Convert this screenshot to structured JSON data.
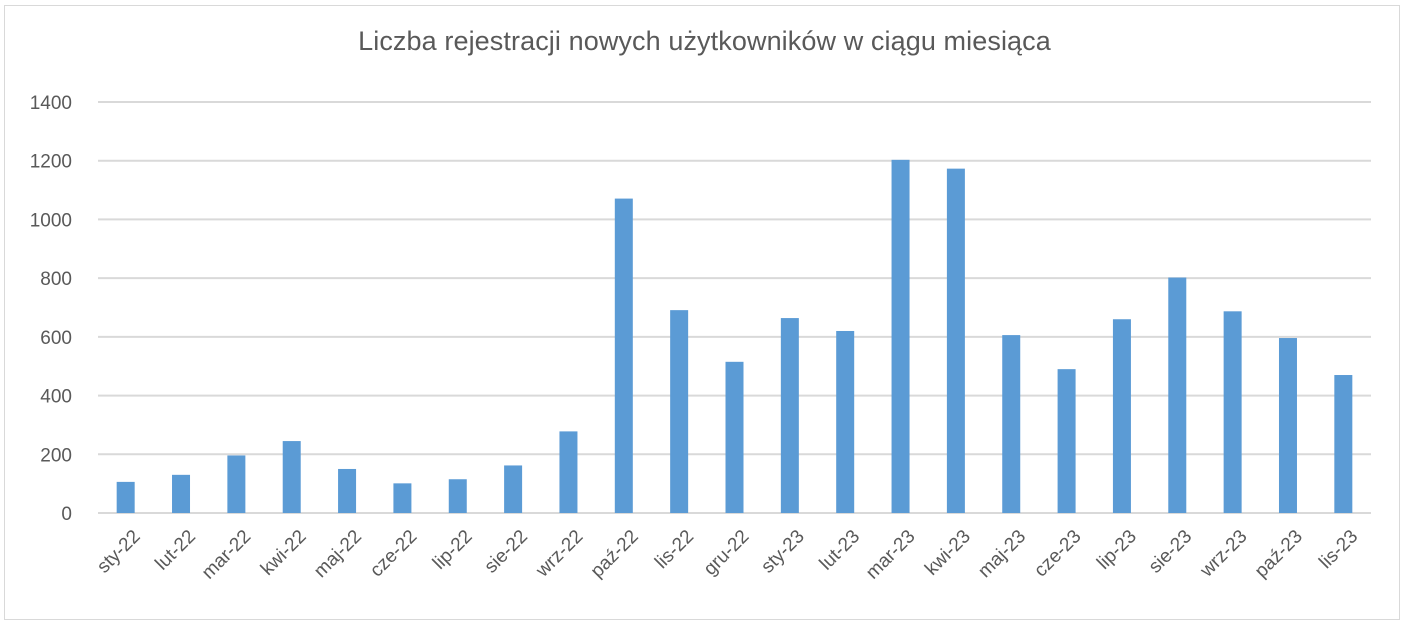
{
  "chart_data": {
    "type": "bar",
    "title": "Liczba rejestracji nowych użytkowników w ciągu miesiąca",
    "xlabel": "",
    "ylabel": "",
    "ylim": [
      0,
      1400
    ],
    "yticks": [
      0,
      200,
      400,
      600,
      800,
      1000,
      1200,
      1400
    ],
    "grid": true,
    "legend": "none",
    "bar_color": "#5b9bd5",
    "categories": [
      "sty-22",
      "lut-22",
      "mar-22",
      "kwi-22",
      "maj-22",
      "cze-22",
      "lip-22",
      "sie-22",
      "wrz-22",
      "paź-22",
      "lis-22",
      "gru-22",
      "sty-23",
      "lut-23",
      "mar-23",
      "kwi-23",
      "maj-23",
      "cze-23",
      "lip-23",
      "sie-23",
      "wrz-23",
      "paź-23",
      "lis-23"
    ],
    "values": [
      106,
      130,
      196,
      245,
      150,
      101,
      115,
      162,
      278,
      1071,
      691,
      515,
      664,
      620,
      1203,
      1173,
      606,
      490,
      660,
      802,
      687,
      596,
      470
    ]
  }
}
